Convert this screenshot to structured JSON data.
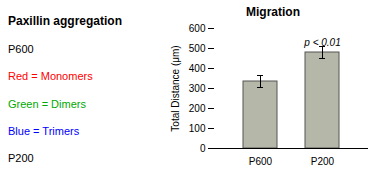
{
  "chart_data": {
    "type": "bar",
    "title": "Migration",
    "categories": [
      "P600",
      "P200"
    ],
    "values": [
      335,
      480
    ],
    "errors": [
      30,
      30
    ],
    "color": "#b5b8a8",
    "ylabel": "Total Distance (μm)",
    "ylim": [
      0,
      600
    ],
    "yticks": [
      0,
      100,
      200,
      300,
      400,
      500,
      600
    ],
    "annotations": [
      {
        "text": "p < 0.01",
        "x": "P200",
        "y": 515
      },
      {
        "text": "Paxillin aggregation"
      },
      {
        "text": "P600"
      },
      {
        "text": "Red = Monomers",
        "color": "red"
      },
      {
        "text": "Green = Dimers",
        "color": "#00aa00"
      },
      {
        "text": "Blue = Trimers",
        "color": "blue"
      },
      {
        "text": "P200"
      }
    ]
  }
}
